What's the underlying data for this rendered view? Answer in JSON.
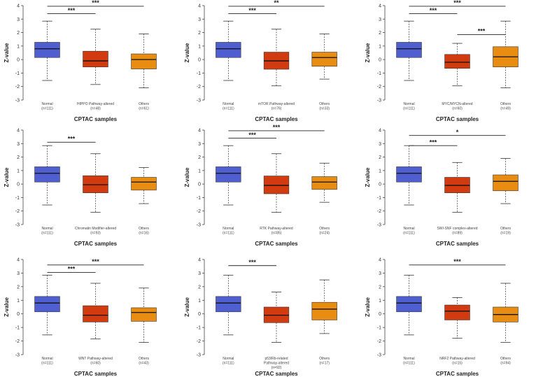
{
  "colors": {
    "normal": "#4f5fd0",
    "altered": "#d23a10",
    "others": "#e88c12",
    "stroke": "#222222"
  },
  "chart_data": [
    {
      "type": "box",
      "xlabel": "CPTAC samples",
      "ylabel": "Z-value",
      "ylim": [
        -3,
        4
      ],
      "yticks": [
        -3,
        -2,
        -1,
        0,
        1,
        2,
        3,
        4
      ],
      "groups": [
        {
          "label": "Normal",
          "n": "(n=111)",
          "min": -1.55,
          "q1": 0.15,
          "median": 0.8,
          "q3": 1.28,
          "max": 2.85
        },
        {
          "label": "HIPPO Pathway-altered",
          "n": "(n=48)",
          "min": -1.85,
          "q1": -0.55,
          "median": -0.1,
          "q3": 0.62,
          "max": 2.25
        },
        {
          "label": "Others",
          "n": "(n=61)",
          "min": -2.1,
          "q1": -0.7,
          "median": 0.0,
          "q3": 0.42,
          "max": 1.9
        }
      ],
      "annotations": [
        {
          "from": 0,
          "to": 1,
          "label": "***",
          "y": 3.4
        },
        {
          "from": 0,
          "to": 2,
          "label": "***",
          "y": 3.95
        }
      ]
    },
    {
      "type": "box",
      "xlabel": "CPTAC samples",
      "ylabel": "Z-value",
      "ylim": [
        -3,
        4
      ],
      "yticks": [
        -3,
        -2,
        -1,
        0,
        1,
        2,
        3,
        4
      ],
      "groups": [
        {
          "label": "Normal",
          "n": "(n=111)",
          "min": -1.55,
          "q1": 0.15,
          "median": 0.8,
          "q3": 1.28,
          "max": 2.85
        },
        {
          "label": "mTOR Pathway-altered",
          "n": "(n=76)",
          "min": -1.95,
          "q1": -0.72,
          "median": -0.1,
          "q3": 0.55,
          "max": 2.25
        },
        {
          "label": "Others",
          "n": "(n=33)",
          "min": -1.45,
          "q1": -0.5,
          "median": 0.15,
          "q3": 0.55,
          "max": 1.9
        }
      ],
      "annotations": [
        {
          "from": 0,
          "to": 1,
          "label": "***",
          "y": 3.4
        },
        {
          "from": 0,
          "to": 2,
          "label": "**",
          "y": 3.95
        }
      ]
    },
    {
      "type": "box",
      "xlabel": "CPTAC samples",
      "ylabel": "Z-value",
      "ylim": [
        -3,
        4
      ],
      "yticks": [
        -3,
        -2,
        -1,
        0,
        1,
        2,
        3,
        4
      ],
      "groups": [
        {
          "label": "Normal",
          "n": "(n=111)",
          "min": -1.55,
          "q1": 0.15,
          "median": 0.8,
          "q3": 1.28,
          "max": 2.85
        },
        {
          "label": "MYC/MYCN-altered",
          "n": "(n=60)",
          "min": -1.95,
          "q1": -0.65,
          "median": -0.2,
          "q3": 0.38,
          "max": 1.2
        },
        {
          "label": "Others",
          "n": "(n=49)",
          "min": -2.1,
          "q1": -0.55,
          "median": 0.2,
          "q3": 0.95,
          "max": 2.85
        }
      ],
      "annotations": [
        {
          "from": 0,
          "to": 1,
          "label": "***",
          "y": 3.4
        },
        {
          "from": 1,
          "to": 2,
          "label": "***",
          "y": 1.85
        },
        {
          "from": 0,
          "to": 2,
          "label": "***",
          "y": 3.95
        }
      ]
    },
    {
      "type": "box",
      "xlabel": "CPTAC samples",
      "ylabel": "Z-value",
      "ylim": [
        -3,
        4
      ],
      "yticks": [
        -3,
        -2,
        -1,
        0,
        1,
        2,
        3,
        4
      ],
      "groups": [
        {
          "label": "Normal",
          "n": "(n=111)",
          "min": -1.55,
          "q1": 0.15,
          "median": 0.8,
          "q3": 1.28,
          "max": 2.85
        },
        {
          "label": "Chromatin Modifier-altered",
          "n": "(n=93)",
          "min": -2.1,
          "q1": -0.65,
          "median": -0.05,
          "q3": 0.62,
          "max": 2.25
        },
        {
          "label": "Others",
          "n": "(n=16)",
          "min": -1.45,
          "q1": -0.45,
          "median": 0.15,
          "q3": 0.5,
          "max": 1.22
        }
      ],
      "annotations": [
        {
          "from": 0,
          "to": 1,
          "label": "***",
          "y": 3.1
        }
      ]
    },
    {
      "type": "box",
      "xlabel": "CPTAC samples",
      "ylabel": "Z-value",
      "ylim": [
        -3,
        4
      ],
      "yticks": [
        -3,
        -2,
        -1,
        0,
        1,
        2,
        3,
        4
      ],
      "groups": [
        {
          "label": "Normal",
          "n": "(n=111)",
          "min": -1.55,
          "q1": 0.15,
          "median": 0.8,
          "q3": 1.28,
          "max": 2.85
        },
        {
          "label": "RTK Pathway-altered",
          "n": "(n=85)",
          "min": -2.1,
          "q1": -0.72,
          "median": -0.1,
          "q3": 0.6,
          "max": 2.25
        },
        {
          "label": "Others",
          "n": "(n=24)",
          "min": -1.35,
          "q1": -0.4,
          "median": 0.15,
          "q3": 0.55,
          "max": 1.55
        }
      ],
      "annotations": [
        {
          "from": 0,
          "to": 1,
          "label": "***",
          "y": 3.4
        },
        {
          "from": 0,
          "to": 2,
          "label": "***",
          "y": 3.95
        }
      ]
    },
    {
      "type": "box",
      "xlabel": "CPTAC samples",
      "ylabel": "Z-value",
      "ylim": [
        -3,
        4
      ],
      "yticks": [
        -3,
        -2,
        -1,
        0,
        1,
        2,
        3,
        4
      ],
      "groups": [
        {
          "label": "Normal",
          "n": "(n=111)",
          "min": -1.55,
          "q1": 0.15,
          "median": 0.8,
          "q3": 1.28,
          "max": 2.85
        },
        {
          "label": "SWI-SNF complex-altered",
          "n": "(n=89)",
          "min": -2.1,
          "q1": -0.65,
          "median": -0.1,
          "q3": 0.5,
          "max": 1.6
        },
        {
          "label": "Others",
          "n": "(n=19)",
          "min": -1.45,
          "q1": -0.5,
          "median": 0.2,
          "q3": 0.68,
          "max": 1.9
        }
      ],
      "annotations": [
        {
          "from": 0,
          "to": 1,
          "label": "***",
          "y": 2.85
        },
        {
          "from": 0,
          "to": 2,
          "label": "*",
          "y": 3.6
        }
      ]
    },
    {
      "type": "box",
      "xlabel": "CPTAC samples",
      "ylabel": "Z-value",
      "ylim": [
        -3,
        4
      ],
      "yticks": [
        -3,
        -2,
        -1,
        0,
        1,
        2,
        3,
        4
      ],
      "groups": [
        {
          "label": "Normal",
          "n": "(n=111)",
          "min": -1.55,
          "q1": 0.15,
          "median": 0.8,
          "q3": 1.28,
          "max": 2.85
        },
        {
          "label": "WNT Pathway-altered",
          "n": "(n=60)",
          "min": -1.85,
          "q1": -0.6,
          "median": -0.1,
          "q3": 0.6,
          "max": 2.25
        },
        {
          "label": "Others",
          "n": "(n=43)",
          "min": -2.1,
          "q1": -0.55,
          "median": 0.1,
          "q3": 0.45,
          "max": 1.9
        }
      ],
      "annotations": [
        {
          "from": 0,
          "to": 1,
          "label": "***",
          "y": 3.05
        },
        {
          "from": 0,
          "to": 2,
          "label": "***",
          "y": 3.6
        }
      ]
    },
    {
      "type": "box",
      "xlabel": "CPTAC samples",
      "ylabel": "Z-value",
      "ylim": [
        -3,
        4
      ],
      "yticks": [
        -3,
        -2,
        -1,
        0,
        1,
        2,
        3,
        4
      ],
      "groups": [
        {
          "label": "Normal",
          "n": "(n=111)",
          "min": -1.55,
          "q1": 0.15,
          "median": 0.8,
          "q3": 1.28,
          "max": 2.85
        },
        {
          "label": "p53/Rb-related Pathway-altered",
          "n": "(n=92)",
          "min": -2.1,
          "q1": -0.65,
          "median": -0.1,
          "q3": 0.5,
          "max": 1.6
        },
        {
          "label": "Others",
          "n": "(n=17)",
          "min": -1.45,
          "q1": -0.45,
          "median": 0.35,
          "q3": 0.85,
          "max": 2.5
        }
      ],
      "annotations": [
        {
          "from": 0,
          "to": 1,
          "label": "***",
          "y": 3.55
        }
      ]
    },
    {
      "type": "box",
      "xlabel": "CPTAC samples",
      "ylabel": "Z-value",
      "ylim": [
        -3,
        4
      ],
      "yticks": [
        -3,
        -2,
        -1,
        0,
        1,
        2,
        3,
        4
      ],
      "groups": [
        {
          "label": "Normal",
          "n": "(n=111)",
          "min": -1.55,
          "q1": 0.15,
          "median": 0.8,
          "q3": 1.28,
          "max": 2.85
        },
        {
          "label": "NRF2 Pathway-altered",
          "n": "(n=15)",
          "min": -1.8,
          "q1": -0.45,
          "median": 0.2,
          "q3": 0.65,
          "max": 1.2
        },
        {
          "label": "Others",
          "n": "(n=94)",
          "min": -2.1,
          "q1": -0.6,
          "median": -0.05,
          "q3": 0.5,
          "max": 2.25
        }
      ],
      "annotations": [
        {
          "from": 0,
          "to": 2,
          "label": "***",
          "y": 3.6
        }
      ]
    }
  ]
}
